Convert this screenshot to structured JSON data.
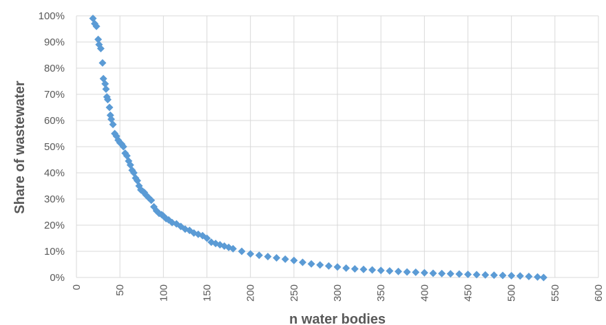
{
  "chart_data": {
    "type": "scatter",
    "title": "",
    "xlabel": "n water bodies",
    "ylabel": "Share of wastewater",
    "xlim": [
      0,
      600
    ],
    "ylim": [
      0,
      1
    ],
    "x_ticks": [
      "0",
      "50",
      "100",
      "150",
      "200",
      "250",
      "300",
      "350",
      "400",
      "450",
      "500",
      "550",
      "600"
    ],
    "y_ticks": [
      "0%",
      "10%",
      "20%",
      "30%",
      "40%",
      "50%",
      "60%",
      "70%",
      "80%",
      "90%",
      "100%"
    ],
    "grid": true,
    "legend": "none",
    "marker": "diamond",
    "color": "#5b9bd5",
    "series": [
      {
        "x": [
          19,
          21,
          23,
          25,
          26,
          28,
          30,
          31,
          33,
          34,
          35,
          36,
          38,
          39,
          40,
          42,
          44,
          46,
          48,
          50,
          52,
          54,
          56,
          58,
          60,
          62,
          64,
          66,
          68,
          70,
          72,
          74,
          76,
          78,
          80,
          83,
          86,
          89,
          92,
          95,
          98,
          100,
          103,
          106,
          110,
          115,
          120,
          125,
          130,
          135,
          140,
          145,
          150,
          155,
          160,
          165,
          170,
          175,
          180,
          190,
          200,
          210,
          220,
          230,
          240,
          250,
          260,
          270,
          280,
          290,
          300,
          310,
          320,
          330,
          340,
          350,
          360,
          370,
          380,
          390,
          400,
          410,
          420,
          430,
          440,
          450,
          460,
          470,
          480,
          490,
          500,
          510,
          520,
          530,
          537
        ],
        "y": [
          0.99,
          0.97,
          0.96,
          0.91,
          0.89,
          0.875,
          0.82,
          0.76,
          0.74,
          0.72,
          0.69,
          0.68,
          0.65,
          0.62,
          0.605,
          0.585,
          0.55,
          0.54,
          0.525,
          0.515,
          0.51,
          0.5,
          0.475,
          0.465,
          0.445,
          0.43,
          0.41,
          0.4,
          0.38,
          0.37,
          0.35,
          0.335,
          0.33,
          0.325,
          0.315,
          0.305,
          0.295,
          0.27,
          0.255,
          0.245,
          0.24,
          0.235,
          0.225,
          0.22,
          0.21,
          0.205,
          0.195,
          0.185,
          0.18,
          0.17,
          0.165,
          0.16,
          0.15,
          0.135,
          0.13,
          0.125,
          0.12,
          0.115,
          0.11,
          0.1,
          0.09,
          0.085,
          0.08,
          0.075,
          0.07,
          0.065,
          0.058,
          0.052,
          0.048,
          0.044,
          0.04,
          0.036,
          0.033,
          0.031,
          0.029,
          0.027,
          0.025,
          0.023,
          0.021,
          0.02,
          0.018,
          0.016,
          0.015,
          0.014,
          0.013,
          0.012,
          0.011,
          0.01,
          0.009,
          0.008,
          0.007,
          0.006,
          0.004,
          0.002,
          0.0
        ]
      }
    ]
  }
}
